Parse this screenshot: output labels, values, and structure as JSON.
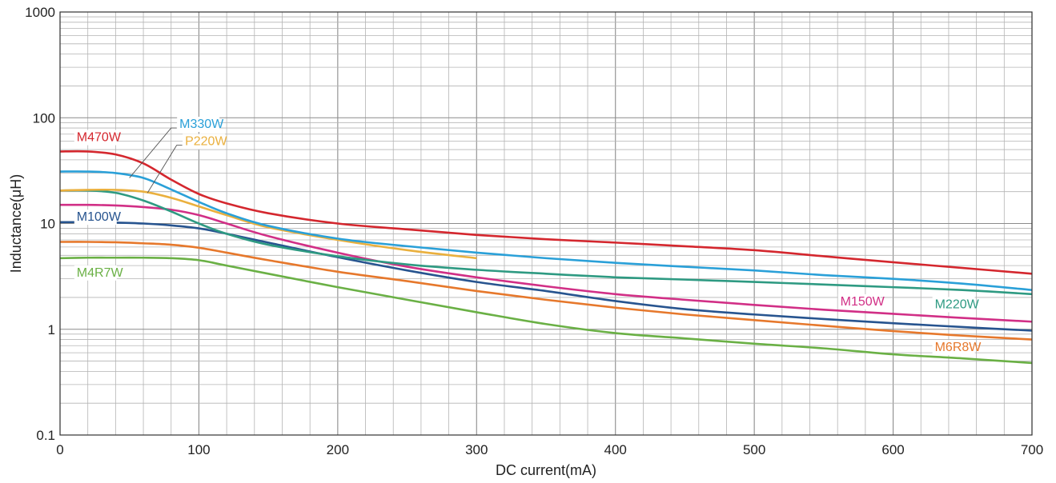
{
  "chart_data": {
    "type": "line",
    "xlabel": "DC current(mA)",
    "ylabel": "Inductance(μH)",
    "xlim": [
      0,
      700
    ],
    "ylim": [
      0.1,
      1000
    ],
    "yscale": "log",
    "grid": true,
    "x_ticks": [
      "0",
      "100",
      "200",
      "300",
      "400",
      "500",
      "600",
      "700"
    ],
    "y_ticks": [
      "0.1",
      "1",
      "10",
      "100",
      "1000"
    ],
    "series": [
      {
        "name": "M470W",
        "color": "#d4272e",
        "x": [
          0,
          20,
          40,
          60,
          80,
          100,
          120,
          150,
          200,
          250,
          300,
          350,
          400,
          450,
          500,
          550,
          600,
          650,
          700
        ],
        "y": [
          48,
          48,
          45,
          37,
          26,
          19,
          15.5,
          12.5,
          10,
          8.8,
          7.8,
          7.1,
          6.6,
          6.1,
          5.6,
          4.9,
          4.3,
          3.8,
          3.35
        ]
      },
      {
        "name": "M330W",
        "color": "#2aa0d8",
        "x": [
          0,
          20,
          40,
          60,
          80,
          100,
          120,
          150,
          200,
          250,
          300,
          350,
          400,
          450,
          500,
          550,
          600,
          650,
          700
        ],
        "y": [
          31,
          31,
          30,
          27,
          21,
          16,
          12.5,
          9.5,
          7.2,
          6.1,
          5.3,
          4.7,
          4.25,
          3.9,
          3.6,
          3.25,
          3.0,
          2.7,
          2.35
        ]
      },
      {
        "name": "P220W",
        "color": "#eab03e",
        "x": [
          0,
          20,
          40,
          60,
          80,
          100,
          120,
          150,
          200,
          250,
          300
        ],
        "y": [
          20.5,
          20.8,
          20.8,
          20,
          17.5,
          14.5,
          12,
          9.2,
          7.0,
          5.6,
          4.7
        ]
      },
      {
        "name": "M220W",
        "color": "#2e9a82",
        "x": [
          0,
          20,
          40,
          60,
          80,
          100,
          120,
          150,
          200,
          250,
          300,
          350,
          400,
          450,
          500,
          550,
          600,
          650,
          700
        ],
        "y": [
          20.5,
          20.5,
          19.5,
          16.5,
          13,
          10,
          8,
          6.3,
          4.9,
          4.1,
          3.65,
          3.35,
          3.1,
          2.95,
          2.8,
          2.65,
          2.5,
          2.35,
          2.15
        ]
      },
      {
        "name": "M150W",
        "color": "#d12f86",
        "x": [
          0,
          20,
          40,
          60,
          80,
          100,
          120,
          150,
          200,
          250,
          300,
          350,
          400,
          450,
          500,
          550,
          600,
          650,
          700
        ],
        "y": [
          15,
          15,
          14.8,
          14.3,
          13.5,
          12,
          10,
          7.6,
          5.3,
          3.9,
          3.1,
          2.55,
          2.15,
          1.9,
          1.7,
          1.53,
          1.4,
          1.28,
          1.18
        ]
      },
      {
        "name": "M100W",
        "color": "#27548f",
        "x": [
          0,
          20,
          40,
          60,
          80,
          100,
          120,
          150,
          200,
          250,
          300,
          350,
          400,
          450,
          500,
          550,
          600,
          650,
          700
        ],
        "y": [
          10.3,
          10.3,
          10.2,
          10,
          9.6,
          9,
          8,
          6.6,
          4.8,
          3.6,
          2.8,
          2.3,
          1.85,
          1.55,
          1.38,
          1.25,
          1.14,
          1.05,
          0.97
        ]
      },
      {
        "name": "M6R8W",
        "color": "#e6782c",
        "x": [
          0,
          20,
          40,
          60,
          80,
          100,
          120,
          150,
          200,
          250,
          300,
          350,
          400,
          450,
          500,
          550,
          600,
          650,
          700
        ],
        "y": [
          6.7,
          6.7,
          6.65,
          6.5,
          6.3,
          5.9,
          5.3,
          4.5,
          3.5,
          2.85,
          2.3,
          1.9,
          1.6,
          1.38,
          1.22,
          1.08,
          0.96,
          0.87,
          0.8
        ]
      },
      {
        "name": "M4R7W",
        "color": "#6ab045",
        "x": [
          0,
          20,
          40,
          60,
          80,
          100,
          120,
          150,
          200,
          250,
          300,
          350,
          400,
          450,
          500,
          550,
          600,
          650,
          700
        ],
        "y": [
          4.7,
          4.75,
          4.75,
          4.75,
          4.7,
          4.5,
          4.0,
          3.35,
          2.5,
          1.9,
          1.45,
          1.12,
          0.92,
          0.82,
          0.73,
          0.66,
          0.58,
          0.53,
          0.48
        ]
      }
    ]
  }
}
